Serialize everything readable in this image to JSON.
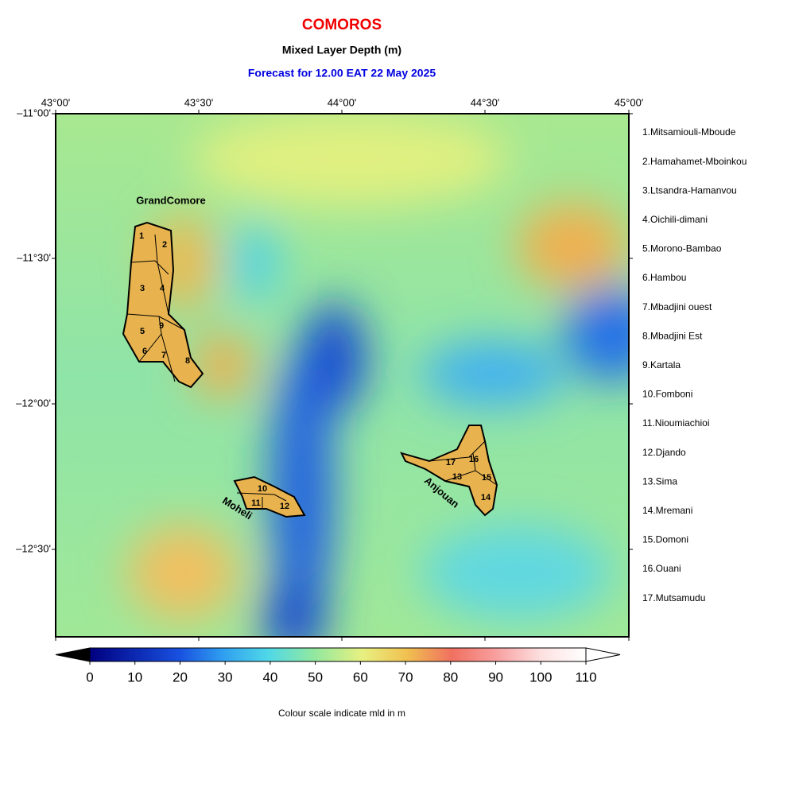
{
  "header": {
    "title": "COMOROS",
    "subtitle": "Mixed Layer Depth (m)",
    "forecast": "Forecast for  12.00 EAT 22 May 2025"
  },
  "map": {
    "lon_ticks": [
      "43°00'",
      "43°30'",
      "44°00'",
      "44°30'",
      "45°00'"
    ],
    "lat_ticks": [
      "–11°00'",
      "–11°30'",
      "–12°00'",
      "–12°30'"
    ],
    "island_labels": [
      "GrandComore",
      "Moheli",
      "Anjouan"
    ],
    "region_numbers": [
      "1",
      "2",
      "3",
      "4",
      "5",
      "6",
      "7",
      "8",
      "9",
      "10",
      "11",
      "12",
      "13",
      "14",
      "15",
      "16",
      "17"
    ]
  },
  "legend": [
    "1.Mitsamiouli-Mboude",
    "2.Hamahamet-Mboinkou",
    "3.Ltsandra-Hamanvou",
    "4.Oichili-dimani",
    "5.Morono-Bambao",
    "6.Hambou",
    "7.Mbadjini ouest",
    "8.Mbadjini Est",
    "9.Kartala",
    "10.Fomboni",
    "11.Nioumiachioi",
    "12.Djando",
    "13.Sima",
    "14.Mremani",
    "15.Domoni",
    "16.Ouani",
    "17.Mutsamudu"
  ],
  "colorbar": {
    "range": [
      0,
      110
    ],
    "ticks": [
      0,
      10,
      20,
      30,
      40,
      50,
      60,
      70,
      80,
      90,
      100,
      110
    ],
    "caption": "Colour scale indicate mld in m"
  }
}
